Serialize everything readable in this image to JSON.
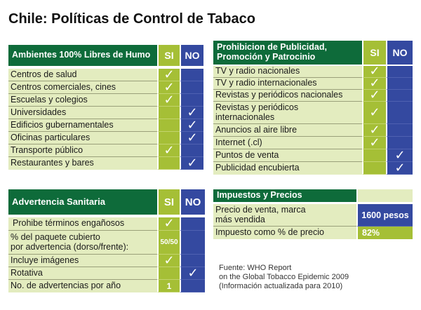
{
  "title": "Chile: Políticas de Control de Tabaco",
  "ambientes": {
    "header": "Ambientes 100% Libres de Humo",
    "si": "SI",
    "no": "NO",
    "rows": [
      {
        "label": "Centros de salud",
        "si": "✓",
        "no": ""
      },
      {
        "label": "Centros comerciales, cines",
        "si": "✓",
        "no": ""
      },
      {
        "label": "Escuelas y colegios",
        "si": "✓",
        "no": ""
      },
      {
        "label": "Universidades",
        "si": "",
        "no": "✓"
      },
      {
        "label": "Edificios gubernamentales",
        "si": "",
        "no": "✓"
      },
      {
        "label": "Oficinas particulares",
        "si": "",
        "no": "✓"
      },
      {
        "label": "Transporte público",
        "si": "✓",
        "no": ""
      },
      {
        "label": "Restaurantes y bares",
        "si": "",
        "no": "✓"
      }
    ]
  },
  "publicidad": {
    "header_line1": "Prohibicion de Publicidad,",
    "header_line2": "Promoción y Patrocinio",
    "si": "SI",
    "no": "NO",
    "rows": [
      {
        "label": "TV y radio nacionales",
        "label2": "",
        "si": "✓",
        "no": ""
      },
      {
        "label": "TV y radio  internacionales",
        "label2": "",
        "si": "✓",
        "no": ""
      },
      {
        "label": "Revistas y periódicos nacionales",
        "label2": "",
        "si": "✓",
        "no": ""
      },
      {
        "label": "Revistas y periódicos",
        "label2": "internacionales",
        "si": "✓",
        "no": ""
      },
      {
        "label": "Anuncios al aire libre",
        "label2": "",
        "si": "✓",
        "no": ""
      },
      {
        "label": "Internet  (.cl)",
        "label2": "",
        "si": "✓",
        "no": ""
      },
      {
        "label": "Puntos de venta",
        "label2": "",
        "si": "",
        "no": "✓"
      },
      {
        "label": "Publicidad encubierta",
        "label2": "",
        "si": "",
        "no": "✓"
      }
    ]
  },
  "advertencia": {
    "header": "Advertencia Sanitaria",
    "si": "SI",
    "no": "NO",
    "rows": [
      {
        "label": "Prohibe términos engañosos",
        "label2": "",
        "si": "✓",
        "no": ""
      },
      {
        "label": "% del paquete cubierto",
        "label2": "por advertencia (dorso/frente):",
        "si": "50/50",
        "no": ""
      },
      {
        "label": "Incluye imágenes",
        "label2": "",
        "si": "✓",
        "no": ""
      },
      {
        "label": "Rotativa",
        "label2": "",
        "si": "",
        "no": "✓"
      },
      {
        "label": "No. de advertencias por año",
        "label2": "",
        "si": "1",
        "no": ""
      }
    ]
  },
  "impuestos": {
    "header": "Impuestos y Precios",
    "rows": [
      {
        "label": "Precio de venta, marca",
        "label2": "más vendida",
        "value": "1600 pesos"
      },
      {
        "label": "Impuesto como % de precio",
        "label2": "",
        "value": "82%"
      }
    ]
  },
  "fuente": {
    "line1": "Fuente: WHO Report",
    "line2": "on the  Global Tobacco Epidemic 2009",
    "line3": "(Información actualizada para 2010)"
  },
  "colors": {
    "header_green": "#0e6b3a",
    "si_green": "#a5bf36",
    "no_blue": "#3449a0",
    "label_bg": "#e3ecbf"
  }
}
